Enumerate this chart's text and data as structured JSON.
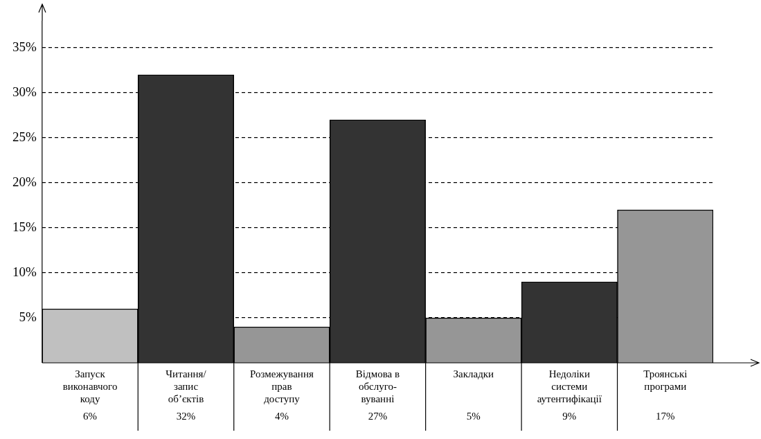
{
  "chart_data": {
    "type": "bar",
    "categories": [
      "Запуск\nвиконавчого\nкоду",
      "Читання/\nзапис\nоб’єктів",
      "Розмежування\nправ\nдоступу",
      "Відмова в\nобслуго-\nвуванні",
      "Закладки",
      "Недоліки\nсистеми\nаутентифікації",
      "Троянські\nпрограми"
    ],
    "values": [
      6,
      32,
      4,
      27,
      5,
      9,
      17
    ],
    "value_labels": [
      "6%",
      "32%",
      "4%",
      "27%",
      "5%",
      "9%",
      "17%"
    ],
    "colors": [
      "#c0c0c0",
      "#333333",
      "#969696",
      "#333333",
      "#969696",
      "#333333",
      "#969696"
    ],
    "ylim": [
      0,
      38
    ],
    "yticks": [
      {
        "value": 5,
        "label": "5%"
      },
      {
        "value": 10,
        "label": "10%"
      },
      {
        "value": 15,
        "label": "15%"
      },
      {
        "value": 20,
        "label": "20%"
      },
      {
        "value": 25,
        "label": "25%"
      },
      {
        "value": 30,
        "label": "30%"
      },
      {
        "value": 35,
        "label": "35%"
      }
    ],
    "grid": "y"
  }
}
